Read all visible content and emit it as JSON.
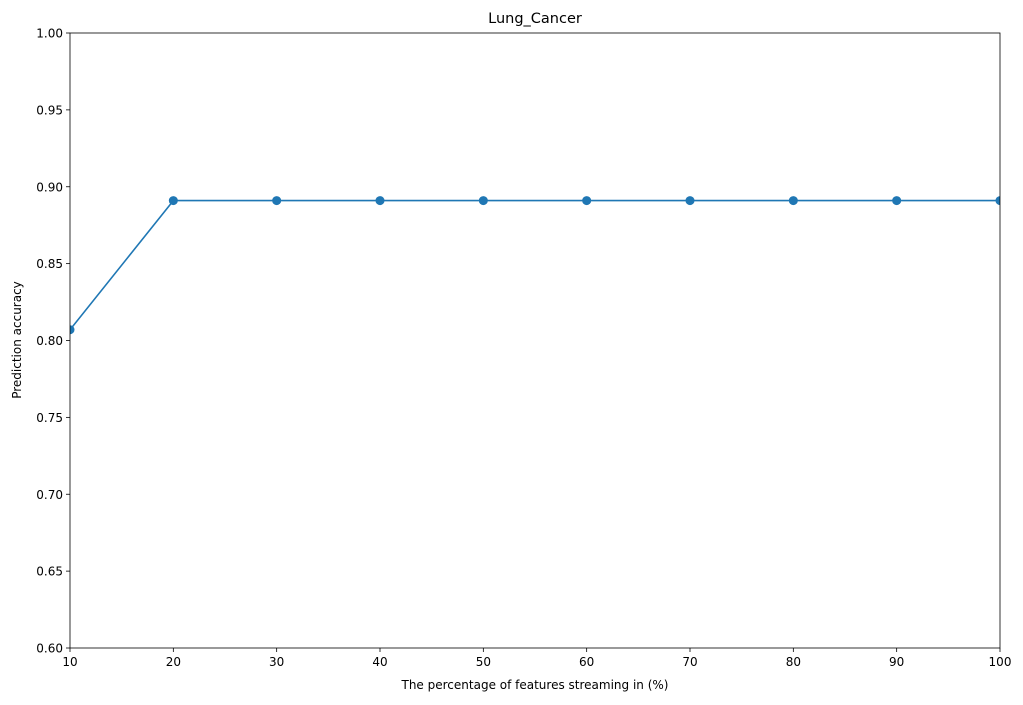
{
  "chart_data": {
    "type": "line",
    "title": "Lung_Cancer",
    "xlabel": "The percentage of features streaming in (%)",
    "ylabel": "Prediction accuracy",
    "xlim": [
      10,
      100
    ],
    "ylim": [
      0.6,
      1.0
    ],
    "x_ticks": [
      "10",
      "20",
      "30",
      "40",
      "50",
      "60",
      "70",
      "80",
      "90",
      "100"
    ],
    "y_ticks": [
      "0.60",
      "0.65",
      "0.70",
      "0.75",
      "0.80",
      "0.85",
      "0.90",
      "0.95",
      "1.00"
    ],
    "grid": false,
    "legend": "none",
    "series": [
      {
        "color": "#1f77b4",
        "marker": "circle",
        "x": [
          10,
          20,
          30,
          40,
          50,
          60,
          70,
          80,
          90,
          100
        ],
        "y": [
          0.807,
          0.891,
          0.891,
          0.891,
          0.891,
          0.891,
          0.891,
          0.891,
          0.891,
          0.891
        ]
      }
    ]
  }
}
